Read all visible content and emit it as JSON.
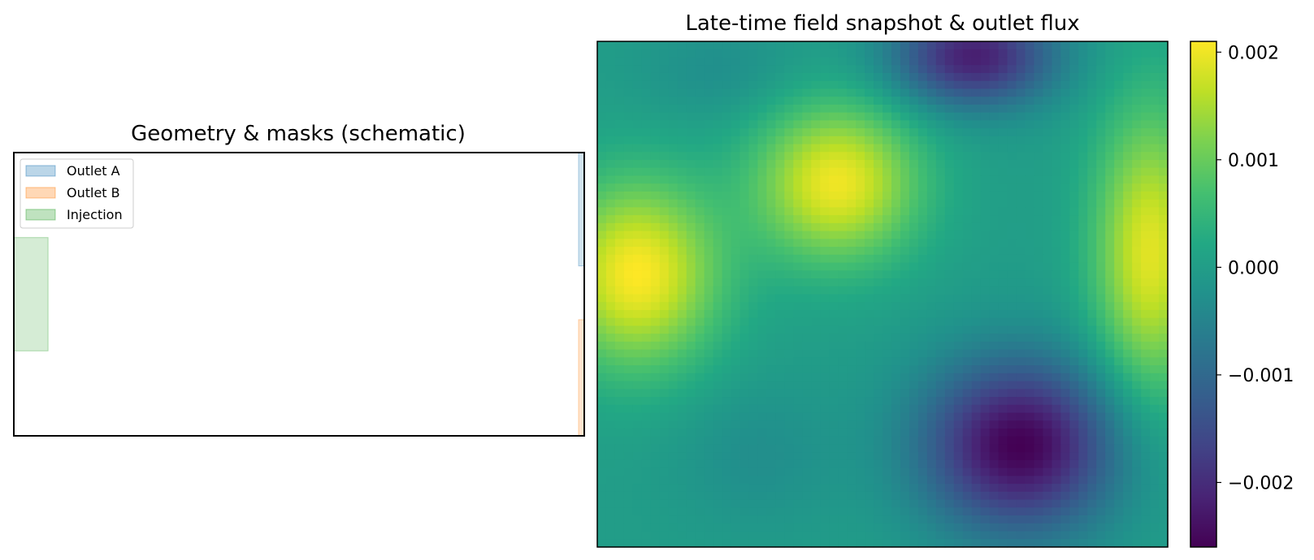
{
  "chart_data": [
    {
      "type": "schematic",
      "title": "Geometry & masks (schematic)",
      "xlim": [
        0,
        1
      ],
      "ylim": [
        0,
        1
      ],
      "legend_position": "top-left",
      "regions": [
        {
          "name": "Outlet A",
          "color": "#1f77b4",
          "x": [
            0.99,
            1.0
          ],
          "y": [
            0.6,
            1.0
          ]
        },
        {
          "name": "Outlet B",
          "color": "#ff7f0e",
          "x": [
            0.99,
            1.0
          ],
          "y": [
            0.0,
            0.41
          ]
        },
        {
          "name": "Injection",
          "color": "#2ca02c",
          "x": [
            0.0,
            0.06
          ],
          "y": [
            0.3,
            0.7
          ]
        }
      ]
    },
    {
      "type": "heatmap",
      "title": "Late-time field snapshot & outlet flux",
      "colormap": "viridis",
      "vmin": -0.0026,
      "vmax": 0.0021,
      "colorbar_ticks": [
        0.002,
        0.001,
        0.0,
        -0.001,
        -0.002
      ],
      "colorbar_tick_labels": [
        "0.002",
        "0.001",
        "0.000",
        "−0.001",
        "−0.002"
      ],
      "grid_size": [
        64,
        64
      ],
      "field_blobs": [
        {
          "x": 0.07,
          "y": 0.46,
          "sx": 0.1,
          "sy": 0.13,
          "value": 0.0021
        },
        {
          "x": 0.42,
          "y": 0.28,
          "sx": 0.1,
          "sy": 0.11,
          "value": 0.002
        },
        {
          "x": 0.97,
          "y": 0.42,
          "sx": 0.07,
          "sy": 0.2,
          "value": 0.0019
        },
        {
          "x": 0.74,
          "y": 0.8,
          "sx": 0.12,
          "sy": 0.12,
          "value": -0.0026
        },
        {
          "x": 0.66,
          "y": 0.03,
          "sx": 0.1,
          "sy": 0.07,
          "value": -0.0022
        },
        {
          "x": 0.22,
          "y": 0.06,
          "sx": 0.1,
          "sy": 0.07,
          "value": -0.0003
        },
        {
          "x": 0.28,
          "y": 0.82,
          "sx": 0.1,
          "sy": 0.1,
          "value": -0.0003
        }
      ]
    }
  ]
}
